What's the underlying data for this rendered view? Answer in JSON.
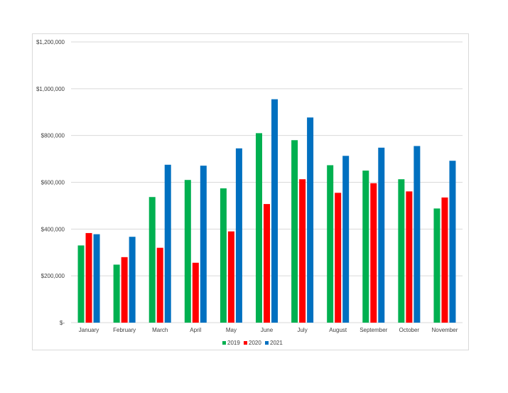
{
  "chart_data": {
    "type": "bar",
    "categories": [
      "January",
      "February",
      "March",
      "April",
      "May",
      "June",
      "July",
      "August",
      "September",
      "October",
      "November"
    ],
    "series": [
      {
        "name": "2019",
        "color": "#00b050",
        "values": [
          330000,
          248000,
          537000,
          610000,
          574000,
          810000,
          780000,
          673000,
          650000,
          613000,
          488000
        ]
      },
      {
        "name": "2020",
        "color": "#ff0000",
        "values": [
          383000,
          280000,
          320000,
          256000,
          390000,
          507000,
          613000,
          555000,
          596000,
          561000,
          535000
        ]
      },
      {
        "name": "2021",
        "color": "#0070c0",
        "values": [
          378000,
          367000,
          675000,
          671000,
          745000,
          955000,
          877000,
          713000,
          748000,
          755000,
          692000
        ]
      }
    ],
    "ylim": [
      0,
      1200000
    ],
    "yticks": [
      0,
      200000,
      400000,
      600000,
      800000,
      1000000,
      1200000
    ],
    "ytick_labels": [
      "$-",
      "$200,000",
      "$400,000",
      "$600,000",
      "$800,000",
      "$1,000,000",
      "$1,200,000"
    ],
    "grid": true,
    "legend_position": "bottom",
    "title": "",
    "xlabel": "",
    "ylabel": ""
  }
}
